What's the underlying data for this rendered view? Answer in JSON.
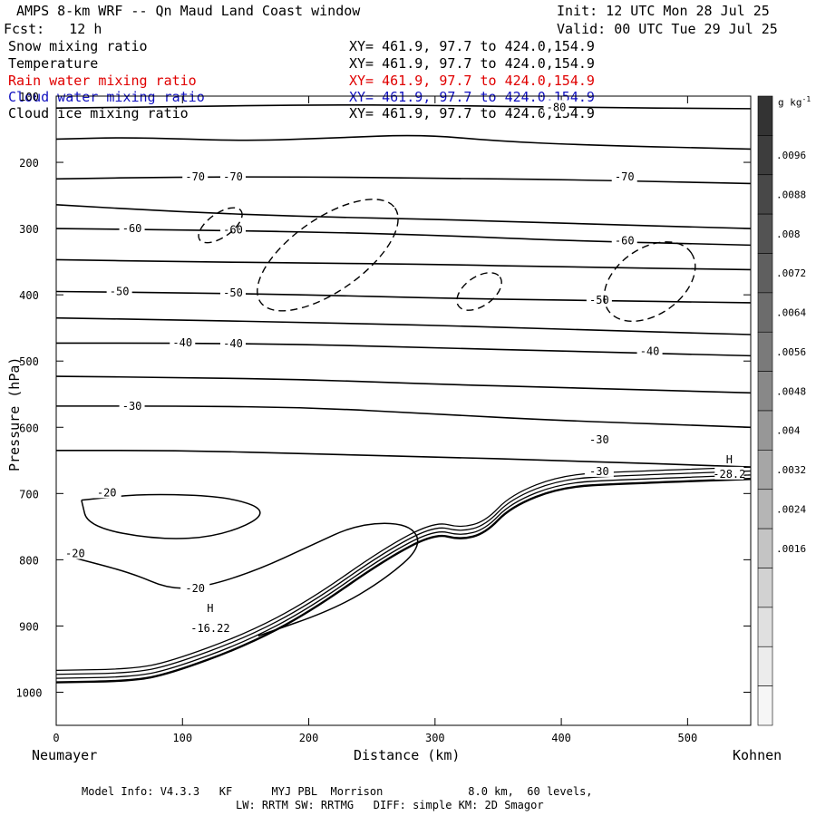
{
  "header": {
    "title": "AMPS 8-km WRF -- Qn Maud Land Coast window",
    "init": "Init: 12 UTC Mon 28 Jul 25",
    "fcst": "Fcst:   12 h",
    "valid": "Valid: 00 UTC Tue 29 Jul 25"
  },
  "fields": [
    {
      "name": "Snow mixing ratio",
      "xy": "XY= 461.9, 97.7 to 424.0,154.9",
      "color": "#000000"
    },
    {
      "name": "Temperature",
      "xy": "XY= 461.9, 97.7 to 424.0,154.9",
      "color": "#000000"
    },
    {
      "name": "Rain water mixing ratio",
      "xy": "XY= 461.9, 97.7 to 424.0,154.9",
      "color": "#e00000"
    },
    {
      "name": "Cloud water mixing ratio",
      "xy": "XY= 461.9, 97.7 to 424.0,154.9",
      "color": "#1010c0"
    },
    {
      "name": "Cloud ice mixing ratio",
      "xy": "XY= 461.9, 97.7 to 424.0,154.9",
      "color": "#000000"
    }
  ],
  "footer": {
    "line1": "Model Info: V4.3.3   KF      MYJ PBL  Morrison             8.0 km,  60 levels,",
    "line2": "LW: RRTM SW: RRTMG   DIFF: simple KM: 2D Smagor"
  },
  "chart_data": {
    "type": "contour",
    "xlabel": "Distance (km)",
    "ylabel": "Pressure (hPa)",
    "x_ticks": [
      0,
      100,
      200,
      300,
      400,
      500
    ],
    "y_ticks": [
      100,
      200,
      300,
      400,
      500,
      600,
      700,
      800,
      900,
      1000
    ],
    "xlim": [
      0,
      550
    ],
    "ylim": [
      1050,
      100
    ],
    "x_start_label": "Neumayer",
    "x_end_label": "Kohnen",
    "colorbar": {
      "unit": "g kg",
      "unit_sup": "-1",
      "labels": [
        ".0096",
        ".0088",
        ".008",
        ".0072",
        ".0064",
        ".0056",
        ".0048",
        ".004",
        ".0032",
        ".0024",
        ".0016"
      ],
      "shades": [
        "#333333",
        "#3d3d3d",
        "#484848",
        "#535353",
        "#5f5f5f",
        "#6c6c6c",
        "#7a7a7a",
        "#888888",
        "#979797",
        "#a6a6a6",
        "#b5b5b5",
        "#c4c4c4",
        "#d2d2d2",
        "#e0e0e0",
        "#ececec",
        "#f6f6f6"
      ]
    },
    "temperature_contours": [
      {
        "label": "-80",
        "points": [
          [
            0,
            118
          ],
          [
            100,
            116
          ],
          [
            200,
            113
          ],
          [
            300,
            114
          ],
          [
            400,
            117
          ],
          [
            550,
            119
          ]
        ]
      },
      {
        "label": "",
        "points": [
          [
            0,
            165
          ],
          [
            60,
            162
          ],
          [
            150,
            168
          ],
          [
            220,
            163
          ],
          [
            290,
            158
          ],
          [
            350,
            168
          ],
          [
            420,
            174
          ],
          [
            550,
            180
          ]
        ]
      },
      {
        "label": "-70",
        "points": [
          [
            0,
            225
          ],
          [
            100,
            222
          ],
          [
            200,
            222
          ],
          [
            300,
            224
          ],
          [
            400,
            226
          ],
          [
            500,
            230
          ],
          [
            550,
            232
          ]
        ]
      },
      {
        "label": "",
        "points": [
          [
            0,
            264
          ],
          [
            100,
            275
          ],
          [
            200,
            282
          ],
          [
            300,
            286
          ],
          [
            400,
            292
          ],
          [
            550,
            300
          ]
        ]
      },
      {
        "label": "-60",
        "points": [
          [
            0,
            300
          ],
          [
            100,
            302
          ],
          [
            200,
            305
          ],
          [
            300,
            310
          ],
          [
            400,
            318
          ],
          [
            550,
            325
          ]
        ]
      },
      {
        "label": "",
        "points": [
          [
            0,
            347
          ],
          [
            100,
            350
          ],
          [
            200,
            352
          ],
          [
            300,
            354
          ],
          [
            400,
            358
          ],
          [
            550,
            362
          ]
        ]
      },
      {
        "label": "-50",
        "points": [
          [
            0,
            395
          ],
          [
            100,
            397
          ],
          [
            200,
            400
          ],
          [
            300,
            405
          ],
          [
            400,
            408
          ],
          [
            550,
            412
          ]
        ]
      },
      {
        "label": "",
        "points": [
          [
            0,
            435
          ],
          [
            100,
            438
          ],
          [
            200,
            442
          ],
          [
            300,
            446
          ],
          [
            400,
            452
          ],
          [
            550,
            460
          ]
        ]
      },
      {
        "label": "-40",
        "points": [
          [
            0,
            473
          ],
          [
            100,
            473
          ],
          [
            200,
            475
          ],
          [
            300,
            480
          ],
          [
            400,
            485
          ],
          [
            550,
            492
          ]
        ]
      },
      {
        "label": "",
        "points": [
          [
            0,
            523
          ],
          [
            100,
            525
          ],
          [
            200,
            528
          ],
          [
            300,
            535
          ],
          [
            400,
            540
          ],
          [
            550,
            548
          ]
        ]
      },
      {
        "label": "-30",
        "points": [
          [
            0,
            568
          ],
          [
            100,
            568
          ],
          [
            200,
            570
          ],
          [
            300,
            580
          ],
          [
            400,
            590
          ],
          [
            550,
            600
          ]
        ]
      },
      {
        "label": "",
        "points": [
          [
            0,
            635
          ],
          [
            100,
            635
          ],
          [
            200,
            640
          ],
          [
            300,
            645
          ],
          [
            400,
            650
          ],
          [
            550,
            660
          ]
        ]
      }
    ],
    "cloud_ice_regions": [
      {
        "center": [
          130,
          295
        ],
        "rx": 20,
        "ry": 18
      },
      {
        "center": [
          215,
          340
        ],
        "rx": 65,
        "ry": 55
      },
      {
        "center": [
          335,
          395
        ],
        "rx": 20,
        "ry": 22
      },
      {
        "center": [
          470,
          380
        ],
        "rx": 40,
        "ry": 50
      }
    ],
    "annotations": [
      {
        "text": "H",
        "x": 122,
        "y": 875
      },
      {
        "text": "-16.22",
        "x": 122,
        "y": 905
      },
      {
        "text": "H",
        "x": 533,
        "y": 650
      },
      {
        "text": "-28.2",
        "x": 533,
        "y": 672
      },
      {
        "text": "-20",
        "x": 40,
        "y": 700
      },
      {
        "text": "-20",
        "x": 15,
        "y": 792
      },
      {
        "text": "-20",
        "x": 110,
        "y": 845
      },
      {
        "text": "-30",
        "x": 430,
        "y": 620
      },
      {
        "text": "-30",
        "x": 430,
        "y": 668
      }
    ]
  }
}
